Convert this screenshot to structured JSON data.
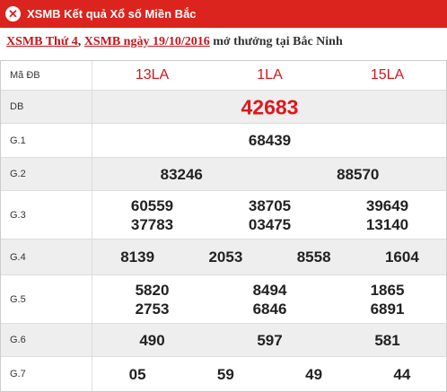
{
  "header": {
    "title": "XSMB Kết quả Xổ số Miền Bắc"
  },
  "subtitle": [
    "XSMB Thứ 4",
    ", ",
    "XSMB ngày 19/10/2016",
    " mở thưởng tại Bắc Ninh"
  ],
  "table": {
    "rows": [
      {
        "label": "Mã ĐB",
        "lines": [
          [
            "13LA",
            "1LA",
            "15LA"
          ]
        ]
      },
      {
        "label": "DB",
        "lines": [
          [
            "42683"
          ]
        ]
      },
      {
        "label": "G.1",
        "lines": [
          [
            "68439"
          ]
        ]
      },
      {
        "label": "G.2",
        "lines": [
          [
            "83246",
            "88570"
          ]
        ]
      },
      {
        "label": "G.3",
        "lines": [
          [
            "60559",
            "38705",
            "39649"
          ],
          [
            "37783",
            "03475",
            "13140"
          ]
        ]
      },
      {
        "label": "G.4",
        "lines": [
          [
            "8139",
            "2053",
            "8558",
            "1604"
          ]
        ]
      },
      {
        "label": "G.5",
        "lines": [
          [
            "5820",
            "8494",
            "1865"
          ],
          [
            "2753",
            "6846",
            "6891"
          ]
        ]
      },
      {
        "label": "G.6",
        "lines": [
          [
            "490",
            "597",
            "581"
          ]
        ]
      },
      {
        "label": "G.7",
        "lines": [
          [
            "05",
            "59",
            "49",
            "44"
          ]
        ]
      }
    ]
  }
}
